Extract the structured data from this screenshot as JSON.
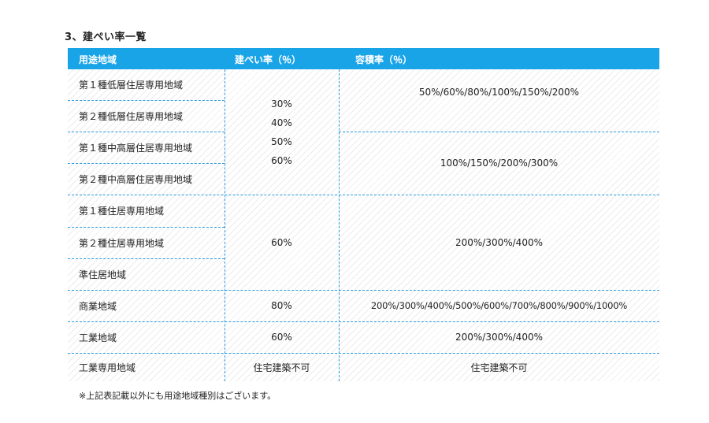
{
  "heading": "3、建ぺい率一覧",
  "header": {
    "col_zone": "用途地域",
    "col_coverage": "建ぺい率（％）",
    "col_far": "容積率（％）"
  },
  "zones": [
    "第１種低層住居専用地域",
    "第２種低層住居専用地域",
    "第１種中高層住居専用地域",
    "第２種中高層住居専用地域",
    "第１種住居専用地域",
    "第２種住居専用地域",
    "準住居地域",
    "商業地域",
    "工業地域",
    "工業専用地域"
  ],
  "coverage": {
    "low_mid_res": [
      "30%",
      "40%",
      "50%",
      "60%"
    ],
    "residential": "60%",
    "commercial": "80%",
    "industrial": "60%",
    "industrial_exclusive": "住宅建築不可"
  },
  "far": {
    "low_res": "50%/60%/80%/100%/150%/200%",
    "mid_res": "100%/150%/200%/300%",
    "residential": "200%/300%/400%",
    "commercial": "200%/300%/400%/500%/600%/700%/800%/900%/1000%",
    "industrial": "200%/300%/400%",
    "industrial_exclusive": "住宅建築不可"
  },
  "note": "※上記表記載以外にも用途地域種別はございます。"
}
